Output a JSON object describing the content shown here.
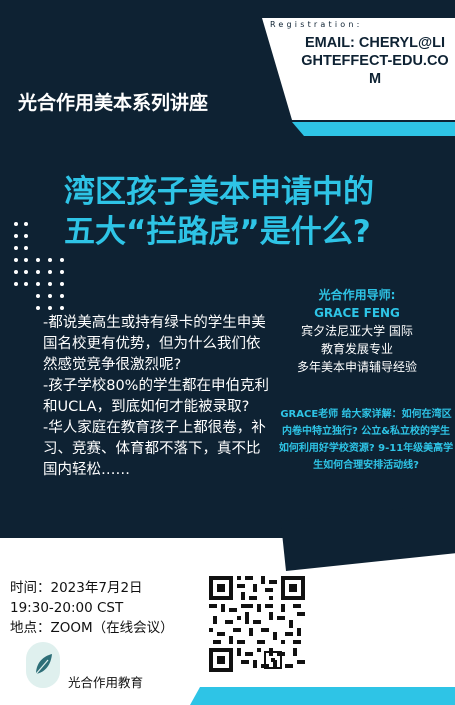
{
  "registration": {
    "label": "Registration:",
    "email": "EMAIL: CHERYL@LIGHTEFFECT-EDU.COM"
  },
  "header": {
    "series_title": "光合作用美本系列讲座"
  },
  "main": {
    "title_line1": "湾区孩子美本申请中的",
    "title_line2": "五大“拦路虎”是什么?",
    "body": [
      "-都说美高生或持有绿卡的学生申美国名校更有优势，但为什么我们依然感觉竞争很激烈呢?",
      "-孩子学校80%的学生都在申伯克利和UCLA，到底如何才能被录取?",
      "-华人家庭在教育孩子上都很卷，补习、竞赛、体育都不落下，真不比国内轻松……"
    ]
  },
  "mentor": {
    "heading": "光合作用导师:",
    "name": "GRACE FENG",
    "line1": "宾夕法尼亚大学 国际",
    "line2": "教育发展专业",
    "line3": "多年美本申请辅导经验",
    "desc": "GRACE老师 给大家详解：如何在湾区内卷中特立独行? 公立&私立校的学生如何利用好学校资源? 9-11年级美高学生如何合理安排活动线?"
  },
  "event": {
    "time": "时间：2023年7月2日",
    "hour": "19:30-20:00 CST",
    "place": "地点：ZOOM（在线会议）"
  },
  "footer": {
    "org_name": "光合作用教育"
  },
  "colors": {
    "navy": "#0e2233",
    "cyan": "#2ec4e6",
    "white": "#ffffff"
  }
}
